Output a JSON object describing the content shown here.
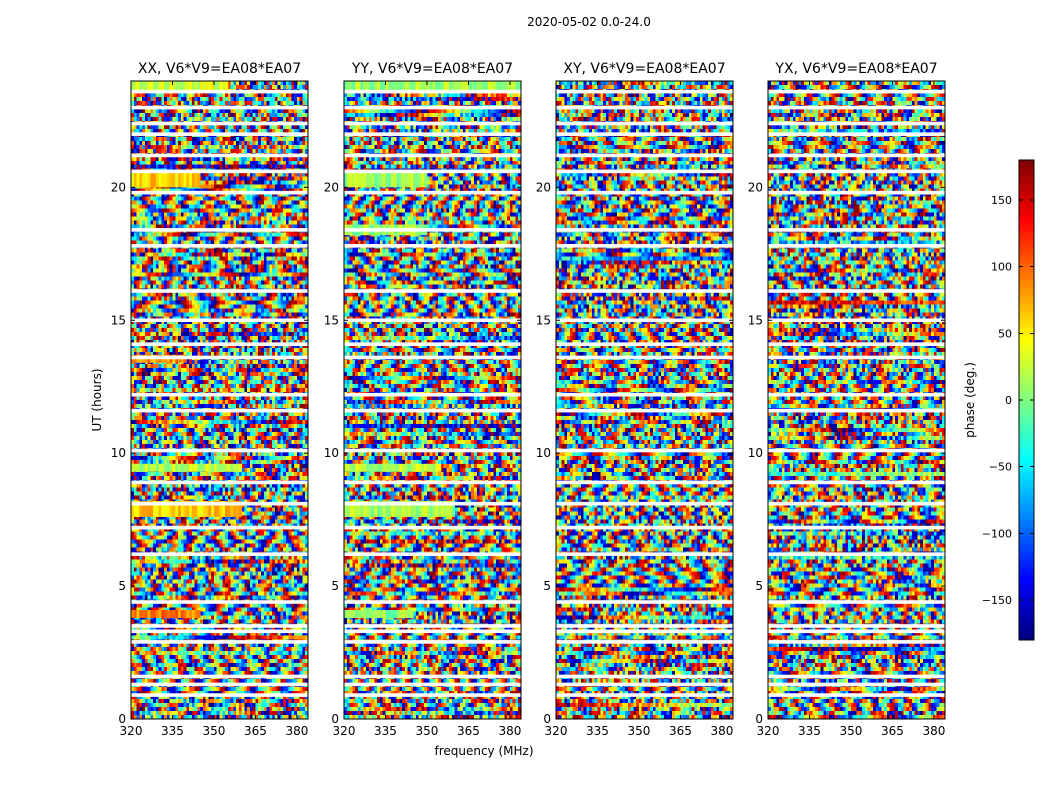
{
  "chart_data": {
    "type": "heatmap",
    "suptitle": "2020-05-02 0.0-24.0",
    "panels": [
      {
        "title": "XX, V6*V9=EA08*EA07",
        "correlation": "XX",
        "baseline": "V6*V9",
        "antennas": "EA08*EA07"
      },
      {
        "title": "YY, V6*V9=EA08*EA07",
        "correlation": "YY",
        "baseline": "V6*V9",
        "antennas": "EA08*EA07"
      },
      {
        "title": "XY, V6*V9=EA08*EA07",
        "correlation": "XY",
        "baseline": "V6*V9",
        "antennas": "EA08*EA07"
      },
      {
        "title": "YX, V6*V9=EA08*EA07",
        "correlation": "YX",
        "baseline": "V6*V9",
        "antennas": "EA08*EA07"
      }
    ],
    "xlabel": "frequency (MHz)",
    "ylabel": "UT (hours)",
    "xlim": [
      320,
      384
    ],
    "ylim": [
      0,
      24
    ],
    "xticks": [
      320,
      335,
      350,
      365,
      380
    ],
    "yticks": [
      0,
      5,
      10,
      15,
      20
    ],
    "colorbar": {
      "label": "phase (deg.)",
      "range": [
        -180,
        180
      ],
      "ticks": [
        -150,
        -100,
        -50,
        0,
        50,
        100,
        150
      ],
      "tick_labels": [
        "−150",
        "−100",
        "−50",
        "0",
        "50",
        "100",
        "150"
      ],
      "colormap": "jet"
    },
    "flagged_gaps_hours": [
      0.9,
      1.3,
      1.6,
      2.9,
      3.3,
      3.5,
      4.4,
      6.2,
      7.2,
      8.1,
      8.9,
      10.1,
      11.6,
      12.2,
      13.6,
      14.1,
      15.0,
      16.1,
      17.8,
      18.4,
      19.8,
      20.6,
      21.2,
      22.0,
      22.4,
      23.0,
      23.6
    ],
    "coherent_bands": [
      {
        "panel": "XX",
        "ut_hours": [
          20.0,
          20.6
        ],
        "freq_mhz": [
          320,
          345
        ],
        "phase_deg": 60
      },
      {
        "panel": "XX",
        "ut_hours": [
          7.6,
          8.2
        ],
        "freq_mhz": [
          320,
          360
        ],
        "phase_deg": 60
      },
      {
        "panel": "XX",
        "ut_hours": [
          9.3,
          9.6
        ],
        "freq_mhz": [
          320,
          360
        ],
        "phase_deg": 20
      },
      {
        "panel": "XX",
        "ut_hours": [
          13.4,
          13.7
        ],
        "freq_mhz": [
          320,
          340
        ],
        "phase_deg": 80
      },
      {
        "panel": "XX",
        "ut_hours": [
          3.8,
          4.1
        ],
        "freq_mhz": [
          320,
          345
        ],
        "phase_deg": 90
      },
      {
        "panel": "XX",
        "ut_hours": [
          23.6,
          24.0
        ],
        "freq_mhz": [
          320,
          355
        ],
        "phase_deg": 30
      },
      {
        "panel": "YY",
        "ut_hours": [
          20.0,
          20.6
        ],
        "freq_mhz": [
          320,
          350
        ],
        "phase_deg": 10
      },
      {
        "panel": "YY",
        "ut_hours": [
          7.6,
          8.2
        ],
        "freq_mhz": [
          320,
          360
        ],
        "phase_deg": 15
      },
      {
        "panel": "YY",
        "ut_hours": [
          18.2,
          18.6
        ],
        "freq_mhz": [
          320,
          350
        ],
        "phase_deg": 10
      },
      {
        "panel": "YY",
        "ut_hours": [
          9.3,
          9.6
        ],
        "freq_mhz": [
          320,
          355
        ],
        "phase_deg": 20
      },
      {
        "panel": "YY",
        "ut_hours": [
          3.8,
          4.1
        ],
        "freq_mhz": [
          320,
          345
        ],
        "phase_deg": 5
      },
      {
        "panel": "YY",
        "ut_hours": [
          23.6,
          24.0
        ],
        "freq_mhz": [
          320,
          384
        ],
        "phase_deg": 10
      }
    ]
  }
}
